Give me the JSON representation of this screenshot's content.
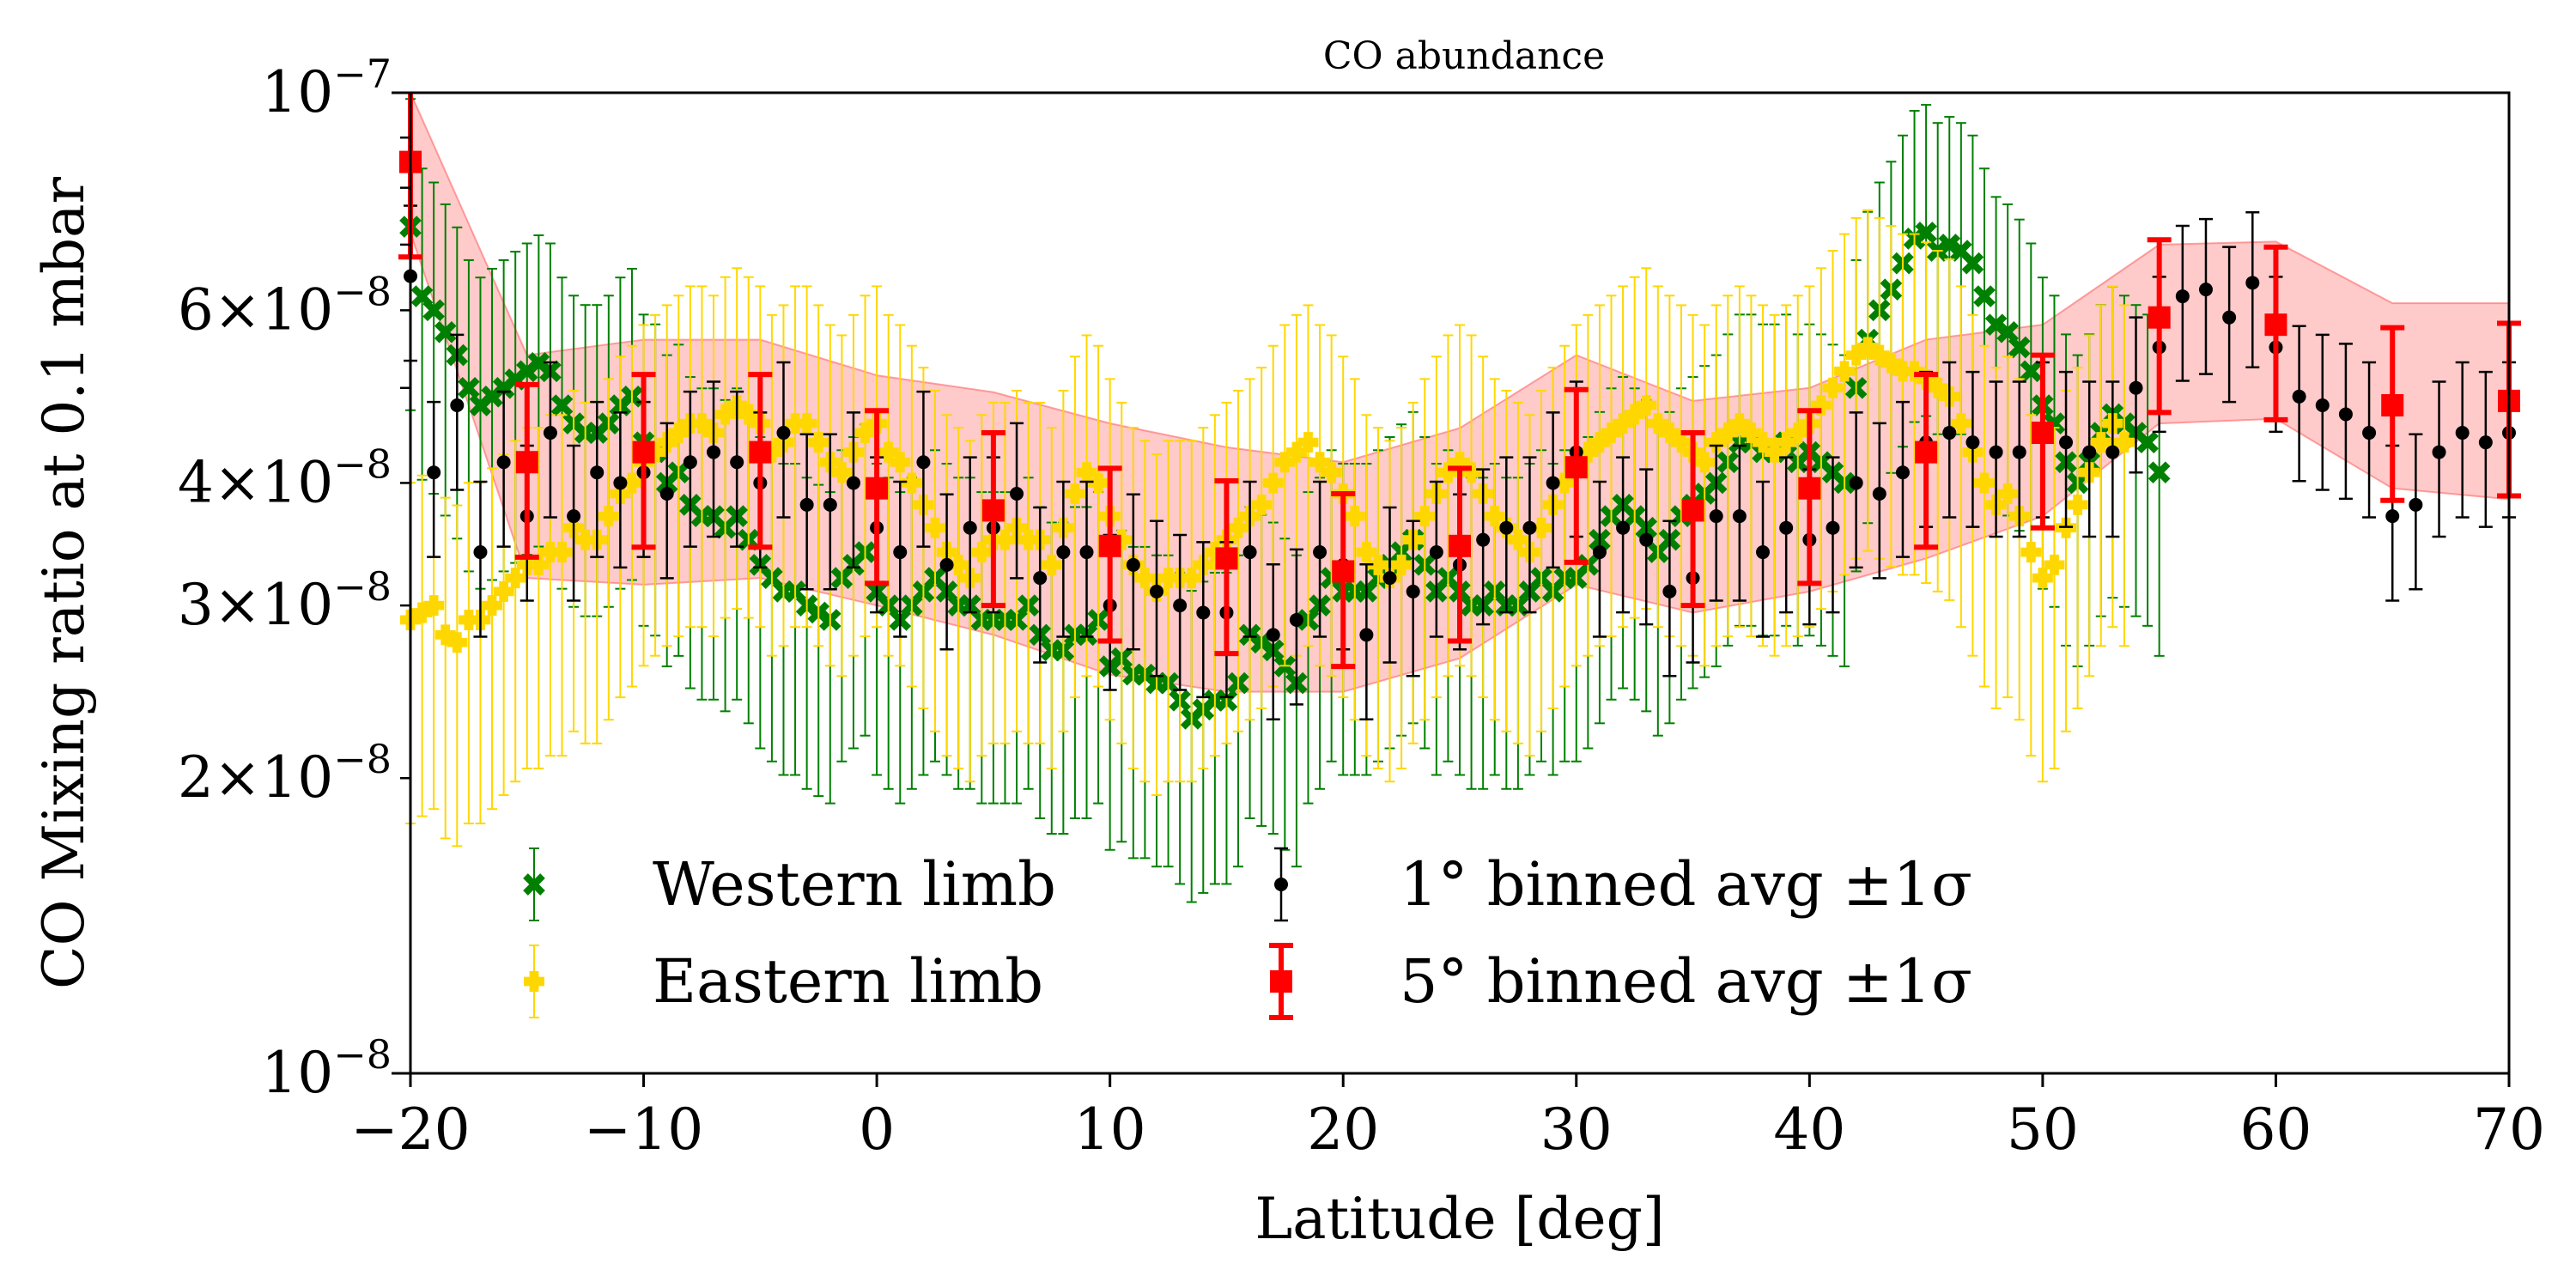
{
  "chart_data": {
    "type": "scatter",
    "title": "CO abundance",
    "xlabel": "Latitude [deg]",
    "ylabel": "CO Mixing ratio at 0.1 mbar",
    "xlim": [
      -20,
      70
    ],
    "ylim": [
      1e-08,
      1e-07
    ],
    "yscale": "log",
    "x_ticks": [
      -20,
      -10,
      0,
      10,
      20,
      30,
      40,
      50,
      60,
      70
    ],
    "x_tick_labels": [
      "−20",
      "−10",
      "0",
      "10",
      "20",
      "30",
      "40",
      "50",
      "60",
      "70"
    ],
    "y_major_ticks": [
      {
        "value": 1e-08,
        "label": "10",
        "exp": "−8",
        "mant": ""
      },
      {
        "value": 1e-07,
        "label": "10",
        "exp": "−7",
        "mant": ""
      }
    ],
    "y_minor_ticks": [
      {
        "value": 2e-08,
        "mant": "2",
        "label": "10",
        "exp": "−8"
      },
      {
        "value": 3e-08,
        "mant": "3",
        "label": "10",
        "exp": "−8"
      },
      {
        "value": 4e-08,
        "mant": "4",
        "label": "10",
        "exp": "−8"
      },
      {
        "value": 6e-08,
        "mant": "6",
        "label": "10",
        "exp": "−8"
      }
    ],
    "y_minor_unlabeled": [
      5e-08,
      7e-08,
      8e-08,
      9e-08
    ],
    "legend_position": "lower-left",
    "band": {
      "name": "5° binned ±1σ band",
      "x": [
        -20,
        -15,
        -10,
        -5,
        0,
        5,
        10,
        15,
        20,
        25,
        30,
        35,
        40,
        45,
        50,
        55,
        60,
        65,
        70
      ],
      "lower": [
        7.2e-08,
        3.2e-08,
        3.15e-08,
        3.2e-08,
        3e-08,
        2.8e-08,
        2.55e-08,
        2.45e-08,
        2.45e-08,
        2.65e-08,
        3.15e-08,
        2.95e-08,
        3.1e-08,
        3.35e-08,
        3.7e-08,
        4.6e-08,
        4.65e-08,
        3.95e-08,
        3.85e-08
      ],
      "upper": [
        1e-07,
        5.4e-08,
        5.6e-08,
        5.6e-08,
        5.15e-08,
        4.95e-08,
        4.6e-08,
        4.35e-08,
        4.2e-08,
        4.55e-08,
        5.4e-08,
        4.85e-08,
        5e-08,
        5.6e-08,
        5.8e-08,
        7e-08,
        7.05e-08,
        6.1e-08,
        6.1e-08
      ]
    },
    "series": [
      {
        "name": "Western limb",
        "color": "#008000",
        "marker": "x",
        "x_start": -20,
        "x_step": 0.5,
        "values": [
          7.3e-08,
          6.2e-08,
          6e-08,
          5.7e-08,
          5.4e-08,
          5e-08,
          4.8e-08,
          4.9e-08,
          5e-08,
          5.1e-08,
          5.2e-08,
          5.3e-08,
          5.2e-08,
          4.8e-08,
          4.6e-08,
          4.5e-08,
          4.5e-08,
          4.6e-08,
          4.8e-08,
          4.9e-08,
          4.4e-08,
          4.3e-08,
          4e-08,
          4.1e-08,
          3.8e-08,
          3.7e-08,
          3.7e-08,
          3.6e-08,
          3.7e-08,
          3.5e-08,
          3.3e-08,
          3.2e-08,
          3.1e-08,
          3.1e-08,
          3e-08,
          2.95e-08,
          2.9e-08,
          3.2e-08,
          3.3e-08,
          3.4e-08,
          3.1e-08,
          3e-08,
          2.9e-08,
          3e-08,
          3.1e-08,
          3.2e-08,
          3.1e-08,
          3e-08,
          3e-08,
          2.9e-08,
          2.9e-08,
          2.9e-08,
          2.9e-08,
          3e-08,
          2.8e-08,
          2.7e-08,
          2.7e-08,
          2.8e-08,
          2.8e-08,
          2.9e-08,
          2.6e-08,
          2.65e-08,
          2.55e-08,
          2.55e-08,
          2.5e-08,
          2.5e-08,
          2.4e-08,
          2.3e-08,
          2.35e-08,
          2.4e-08,
          2.4e-08,
          2.5e-08,
          2.8e-08,
          2.75e-08,
          2.7e-08,
          2.6e-08,
          2.5e-08,
          2.9e-08,
          3e-08,
          3.2e-08,
          3.1e-08,
          3.1e-08,
          3.1e-08,
          3.2e-08,
          3.3e-08,
          3.4e-08,
          3.5e-08,
          3.3e-08,
          3.1e-08,
          3.2e-08,
          3.1e-08,
          3e-08,
          3e-08,
          3.1e-08,
          3e-08,
          3e-08,
          3.1e-08,
          3.2e-08,
          3.1e-08,
          3.2e-08,
          3.2e-08,
          3.3e-08,
          3.5e-08,
          3.7e-08,
          3.8e-08,
          3.7e-08,
          3.6e-08,
          3.4e-08,
          3.5e-08,
          3.7e-08,
          3.8e-08,
          3.9e-08,
          4e-08,
          4.2e-08,
          4.4e-08,
          4.4e-08,
          4.3e-08,
          4.3e-08,
          4.4e-08,
          4.2e-08,
          4.3e-08,
          4.2e-08,
          4.1e-08,
          4e-08,
          5e-08,
          5.6e-08,
          6e-08,
          6.3e-08,
          6.7e-08,
          7.1e-08,
          7.2e-08,
          6.9e-08,
          7e-08,
          6.9e-08,
          6.7e-08,
          6.2e-08,
          5.8e-08,
          5.7e-08,
          5.5e-08,
          5.2e-08,
          4.8e-08,
          4.6e-08,
          4.2e-08,
          4e-08,
          4.2e-08,
          4.5e-08,
          4.7e-08,
          4.6e-08,
          4.5e-08,
          4.4e-08,
          4.1e-08
        ],
        "err_rel": 0.35
      },
      {
        "name": "Eastern limb",
        "color": "#FFD700",
        "marker": "P",
        "x_start": -20,
        "x_step": 0.5,
        "values": [
          2.9e-08,
          2.95e-08,
          3e-08,
          2.8e-08,
          2.75e-08,
          2.9e-08,
          2.9e-08,
          3e-08,
          3.1e-08,
          3.2e-08,
          3.3e-08,
          3.3e-08,
          3.4e-08,
          3.4e-08,
          3.6e-08,
          3.5e-08,
          3.5e-08,
          3.7e-08,
          3.9e-08,
          4e-08,
          4.2e-08,
          4.3e-08,
          4.4e-08,
          4.5e-08,
          4.6e-08,
          4.6e-08,
          4.5e-08,
          4.7e-08,
          4.8e-08,
          4.7e-08,
          4.6e-08,
          4.3e-08,
          4.4e-08,
          4.6e-08,
          4.6e-08,
          4.4e-08,
          4.2e-08,
          4.1e-08,
          4.3e-08,
          4.5e-08,
          4.6e-08,
          4.3e-08,
          4.2e-08,
          4e-08,
          3.8e-08,
          3.6e-08,
          3.4e-08,
          3.3e-08,
          3.2e-08,
          3.4e-08,
          3.5e-08,
          3.5e-08,
          3.6e-08,
          3.5e-08,
          3.5e-08,
          3.3e-08,
          3.6e-08,
          3.9e-08,
          4.1e-08,
          4e-08,
          3.7e-08,
          3.5e-08,
          3.3e-08,
          3.2e-08,
          3.1e-08,
          3.2e-08,
          3.2e-08,
          3.2e-08,
          3.3e-08,
          3.4e-08,
          3.5e-08,
          3.6e-08,
          3.7e-08,
          3.8e-08,
          4e-08,
          4.2e-08,
          4.3e-08,
          4.4e-08,
          4.2e-08,
          4.1e-08,
          3.9e-08,
          3.7e-08,
          3.4e-08,
          3.3e-08,
          3.2e-08,
          3.3e-08,
          3.5e-08,
          3.7e-08,
          3.9e-08,
          4.1e-08,
          4.2e-08,
          4.1e-08,
          3.9e-08,
          3.7e-08,
          3.6e-08,
          3.5e-08,
          3.4e-08,
          3.6e-08,
          3.8e-08,
          4e-08,
          4.2e-08,
          4.3e-08,
          4.4e-08,
          4.5e-08,
          4.6e-08,
          4.7e-08,
          4.8e-08,
          4.6e-08,
          4.5e-08,
          4.4e-08,
          4.3e-08,
          4.2e-08,
          4.4e-08,
          4.5e-08,
          4.6e-08,
          4.5e-08,
          4.4e-08,
          4.3e-08,
          4.4e-08,
          4.5e-08,
          4.6e-08,
          4.8e-08,
          5e-08,
          5.2e-08,
          5.4e-08,
          5.5e-08,
          5.4e-08,
          5.3e-08,
          5.2e-08,
          5.2e-08,
          5.1e-08,
          5e-08,
          4.9e-08,
          4.6e-08,
          4.3e-08,
          4e-08,
          3.8e-08,
          3.9e-08,
          3.7e-08,
          3.4e-08,
          3.2e-08,
          3.3e-08,
          3.6e-08,
          3.8e-08,
          4.1e-08,
          4.4e-08,
          4.6e-08,
          4.4e-08
        ],
        "err_rel": 0.38
      },
      {
        "name": "1° binned avg ±1σ",
        "color": "#000000",
        "marker": "o",
        "x_start": -20,
        "x_step": 1,
        "values": [
          6.5e-08,
          4.1e-08,
          4.8e-08,
          3.4e-08,
          4.2e-08,
          3.7e-08,
          4.5e-08,
          3.7e-08,
          4.1e-08,
          4e-08,
          4.1e-08,
          3.9e-08,
          4.2e-08,
          4.3e-08,
          4.2e-08,
          4e-08,
          4.5e-08,
          3.8e-08,
          3.8e-08,
          4e-08,
          3.6e-08,
          3.4e-08,
          4.2e-08,
          3.3e-08,
          3.6e-08,
          3.6e-08,
          3.9e-08,
          3.2e-08,
          3.4e-08,
          3.4e-08,
          3e-08,
          3.3e-08,
          3.1e-08,
          3e-08,
          2.95e-08,
          2.95e-08,
          3.4e-08,
          2.8e-08,
          2.9e-08,
          3.4e-08,
          3.3e-08,
          2.8e-08,
          3.2e-08,
          3.1e-08,
          3.4e-08,
          3.3e-08,
          3.5e-08,
          3.6e-08,
          3.6e-08,
          4e-08,
          4.3e-08,
          3.4e-08,
          3.6e-08,
          3.5e-08,
          3.1e-08,
          3.2e-08,
          3.7e-08,
          3.7e-08,
          3.4e-08,
          3.6e-08,
          3.5e-08,
          3.6e-08,
          4e-08,
          3.9e-08,
          4.1e-08,
          4.4e-08,
          4.5e-08,
          4.4e-08,
          4.3e-08,
          4.3e-08,
          4.5e-08,
          4.4e-08,
          4.3e-08,
          4.3e-08,
          5e-08,
          5.5e-08,
          6.2e-08,
          6.3e-08,
          5.9e-08,
          6.4e-08,
          5.5e-08,
          4.9e-08,
          4.8e-08,
          4.7e-08,
          4.5e-08,
          3.7e-08,
          3.8e-08,
          4.3e-08,
          4.5e-08,
          4.4e-08,
          4.5e-08
        ],
        "err_rel": 0.18
      },
      {
        "name": "5° binned avg ±1σ",
        "color": "#FF0000",
        "marker": "s",
        "x": [
          -20,
          -15,
          -10,
          -5,
          0,
          5,
          10,
          15,
          20,
          25,
          30,
          35,
          40,
          45,
          50,
          55,
          60,
          65,
          70
        ],
        "values": [
          8.5e-08,
          4.2e-08,
          4.3e-08,
          4.3e-08,
          3.95e-08,
          3.75e-08,
          3.45e-08,
          3.35e-08,
          3.25e-08,
          3.45e-08,
          4.15e-08,
          3.75e-08,
          3.95e-08,
          4.3e-08,
          4.5e-08,
          5.9e-08,
          5.8e-08,
          4.8e-08,
          4.85e-08
        ],
        "err_rel": 0.2
      }
    ]
  }
}
